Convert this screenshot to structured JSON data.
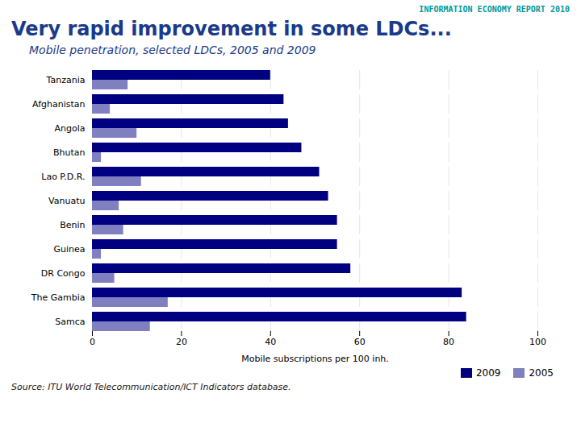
{
  "chart_data": {
    "type": "bar",
    "orientation": "horizontal",
    "title": "Very rapid improvement in some LDCs...",
    "subtitle": "Mobile penetration, selected LDCs, 2005 and 2009",
    "annotations": [
      "INFORMATION ECONOMY REPORT 2010",
      "Source: ITU World Telecommunication/ICT Indicators database."
    ],
    "xlabel": "Mobile subscriptions per 100 inh.",
    "categories": [
      "Samca",
      "The Gambia",
      "DR Congo",
      "Guinea",
      "Benin",
      "Vanuatu",
      "Lao P.D.R.",
      "Bhutan",
      "Angola",
      "Afghanistan",
      "Tanzania"
    ],
    "series": [
      {
        "name": "2009",
        "color": "#000080",
        "values": [
          84,
          83,
          58,
          55,
          55,
          53,
          51,
          47,
          44,
          43,
          40
        ]
      },
      {
        "name": "2005",
        "color": "#8080C0",
        "values": [
          13,
          17,
          5,
          2,
          7,
          6,
          11,
          2,
          10,
          4,
          8
        ]
      }
    ],
    "xlim": [
      0,
      100
    ],
    "xticks": [
      0,
      20,
      40,
      60,
      80,
      100
    ],
    "grid": true,
    "legend": "lower right"
  }
}
